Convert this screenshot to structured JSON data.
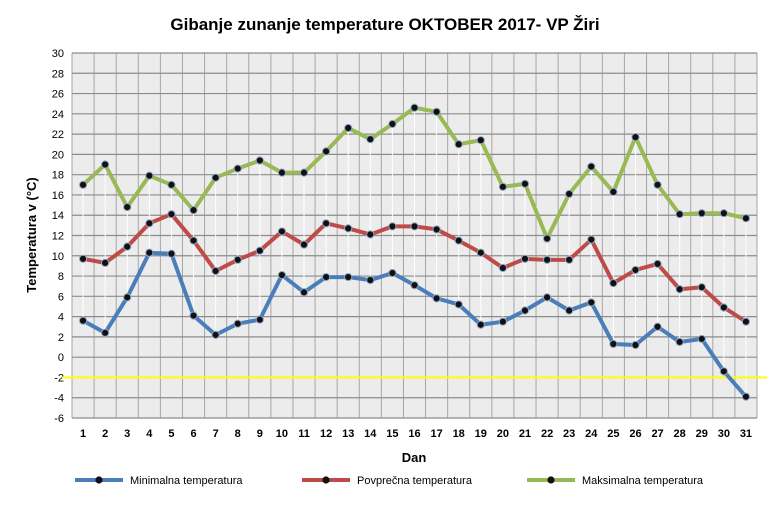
{
  "chart_data": {
    "type": "line",
    "title": "Gibanje zunanje temperature OKTOBER 2017- VP Žiri",
    "xlabel": "Dan",
    "ylabel": "Temperatura v (°C)",
    "ylim": [
      -6,
      30
    ],
    "ytick_step": 2,
    "grid": true,
    "legend": "bottom",
    "categories": [
      "1",
      "2",
      "3",
      "4",
      "5",
      "6",
      "7",
      "8",
      "9",
      "10",
      "11",
      "12",
      "13",
      "14",
      "15",
      "16",
      "17",
      "18",
      "19",
      "20",
      "21",
      "22",
      "23",
      "24",
      "25",
      "26",
      "27",
      "28",
      "29",
      "30",
      "31"
    ],
    "reference_line": {
      "value": -2,
      "color": "#ffff00"
    },
    "series": [
      {
        "name": "Minimalna temperatura",
        "color": "#4a7ebb",
        "values": [
          3.6,
          2.4,
          5.9,
          10.3,
          10.2,
          4.1,
          2.2,
          3.3,
          3.7,
          8.1,
          6.4,
          7.9,
          7.9,
          7.6,
          8.3,
          7.1,
          5.8,
          5.2,
          3.2,
          3.5,
          4.6,
          5.9,
          4.6,
          5.4,
          1.3,
          1.2,
          3.0,
          1.5,
          1.8,
          -1.4,
          -3.9
        ]
      },
      {
        "name": "Povprečna temperatura",
        "color": "#be4b48",
        "values": [
          9.7,
          9.3,
          10.9,
          13.2,
          14.1,
          11.5,
          8.5,
          9.6,
          10.5,
          12.4,
          11.1,
          13.2,
          12.7,
          12.1,
          12.9,
          12.9,
          12.6,
          11.5,
          10.3,
          8.8,
          9.7,
          9.6,
          9.6,
          11.6,
          7.3,
          8.6,
          9.2,
          6.7,
          6.9,
          4.9,
          3.5
        ]
      },
      {
        "name": "Maksimalna temperatura",
        "color": "#98b954",
        "values": [
          17.0,
          19.0,
          14.8,
          17.9,
          17.0,
          14.5,
          17.7,
          18.6,
          19.4,
          18.2,
          18.2,
          20.3,
          22.6,
          21.5,
          23.0,
          24.6,
          24.2,
          21.0,
          21.4,
          16.8,
          17.1,
          11.7,
          16.1,
          18.8,
          16.3,
          21.7,
          17.0,
          14.1,
          14.2,
          14.2,
          13.7
        ]
      }
    ]
  }
}
